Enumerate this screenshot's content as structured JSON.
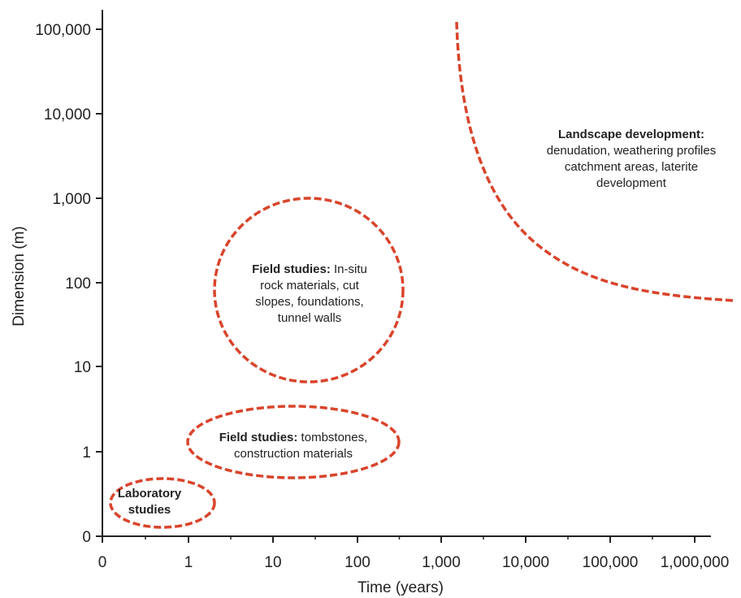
{
  "chart_data": {
    "type": "diagram",
    "xlabel": "Time (years)",
    "ylabel": "Dimension (m)",
    "x_ticks": [
      "0",
      "1",
      "10",
      "100",
      "1,000",
      "10,000",
      "100,000",
      "1,000,000"
    ],
    "y_ticks": [
      "0",
      "1",
      "10",
      "100",
      "1,000",
      "10,000",
      "100,000"
    ],
    "regions": [
      {
        "name": "laboratory-studies",
        "bold": "Laboratory studies",
        "lines": [
          {
            "bold": "Laboratory",
            "text": ""
          },
          {
            "bold": "studies",
            "text": ""
          }
        ]
      },
      {
        "name": "field-studies-tombstones",
        "lines": [
          {
            "bold": "Field studies:",
            "text": " tombstones,"
          },
          {
            "bold": "",
            "text": "construction materials"
          }
        ]
      },
      {
        "name": "field-studies-in-situ",
        "lines": [
          {
            "bold": "Field studies:",
            "text": " In-situ"
          },
          {
            "bold": "",
            "text": "rock materials, cut"
          },
          {
            "bold": "",
            "text": "slopes, foundations,"
          },
          {
            "bold": "",
            "text": "tunnel walls"
          }
        ]
      },
      {
        "name": "landscape-development",
        "lines": [
          {
            "bold": "Landscape development:",
            "text": ""
          },
          {
            "bold": "",
            "text": "denudation, weathering profiles"
          },
          {
            "bold": "",
            "text": "catchment areas, laterite"
          },
          {
            "bold": "",
            "text": "development"
          }
        ]
      }
    ],
    "colors": {
      "boundary": "#d9442b",
      "axis": "#222222"
    }
  }
}
